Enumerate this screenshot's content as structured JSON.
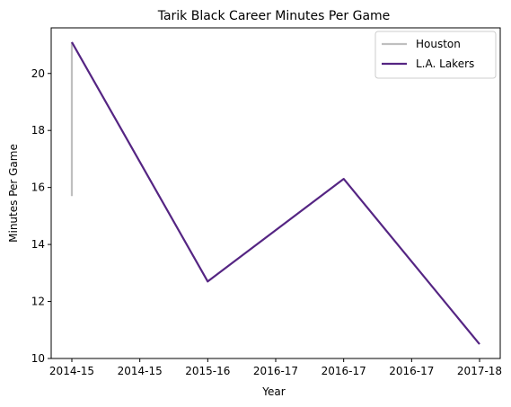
{
  "chart_data": {
    "type": "line",
    "title": "Tarik Black Career Minutes Per Game",
    "xlabel": "Year",
    "ylabel": "Minutes Per Game",
    "x_ticks": [
      "2014-15",
      "2014-15",
      "2015-16",
      "2016-17",
      "2016-17",
      "2016-17",
      "2017-18"
    ],
    "xlim": [
      0,
      6
    ],
    "ylim": [
      10,
      21.6
    ],
    "y_ticks": [
      10,
      12,
      14,
      16,
      18,
      20
    ],
    "grid": false,
    "legend_position": "top-right",
    "series": [
      {
        "name": "Houston",
        "color": "#bfbfbf",
        "x": [
          0,
          0
        ],
        "y": [
          15.7,
          21.1
        ]
      },
      {
        "name": "L.A. Lakers",
        "color": "#552583",
        "x": [
          0,
          2,
          4,
          6
        ],
        "y": [
          21.1,
          12.7,
          16.3,
          10.5
        ]
      }
    ]
  }
}
